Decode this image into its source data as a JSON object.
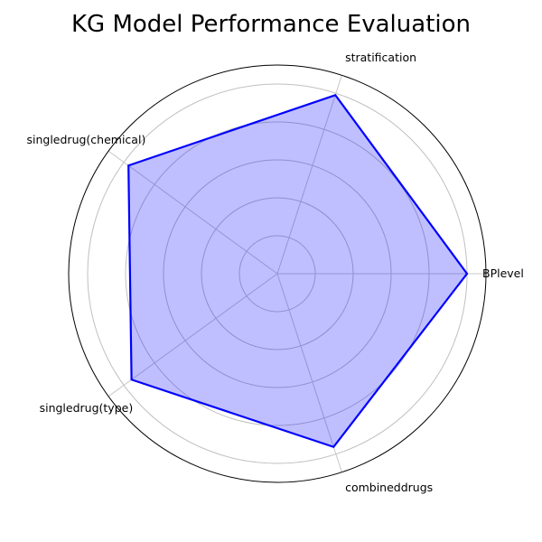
{
  "chart_data": {
    "type": "radar",
    "title": "KG Model Performance Evaluation",
    "categories": [
      "BPlevel",
      "stratification",
      "singledrug(chemical)",
      "singledrug(type)",
      "combineddrugs"
    ],
    "series": [
      {
        "values": [
          1.0,
          0.99,
          0.97,
          0.95,
          0.96
        ]
      }
    ],
    "rlim": [
      0,
      1.1
    ],
    "grid_rings": [
      0.2,
      0.4,
      0.6,
      0.8,
      1.0
    ],
    "grid": true,
    "colors": {
      "line": "#0000ff",
      "fill": "#0000ff",
      "grid": "#c0c0c0",
      "spoke": "#c8c8c8"
    }
  }
}
